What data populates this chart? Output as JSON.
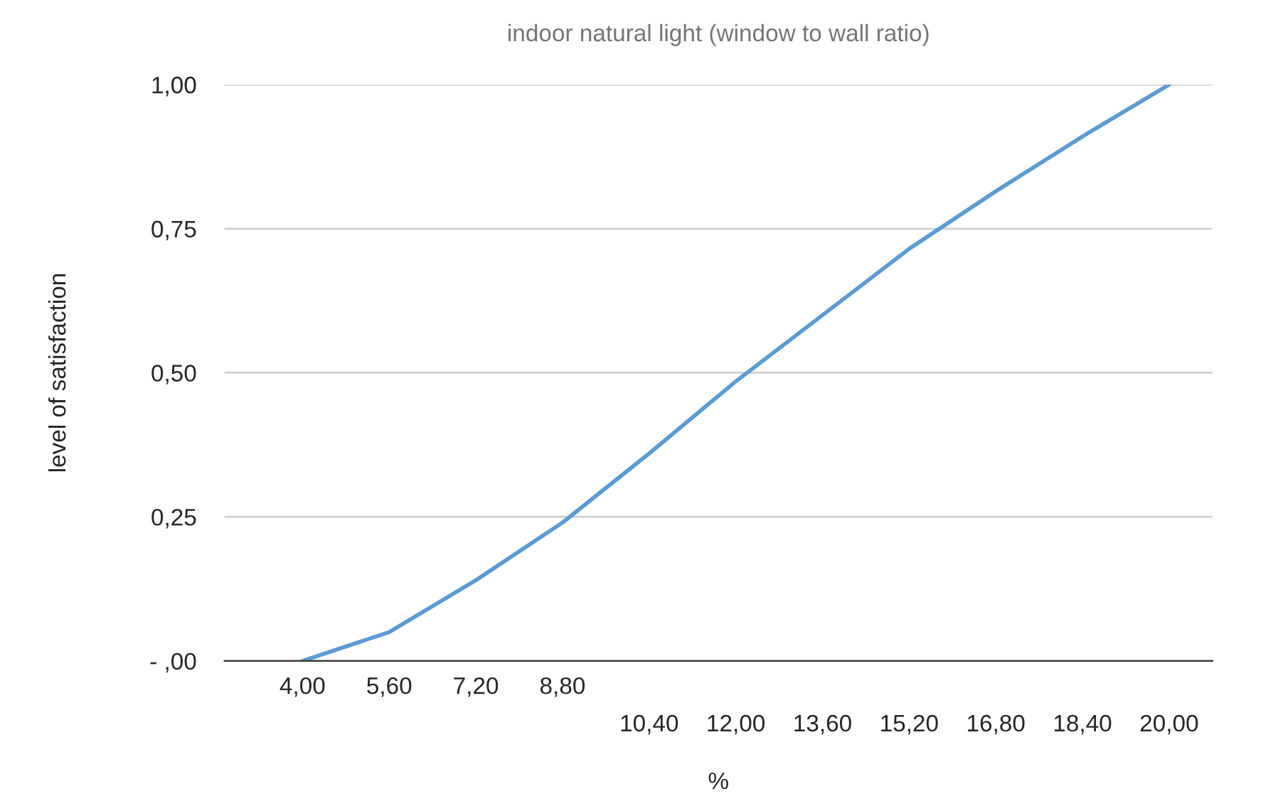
{
  "chart_data": {
    "type": "line",
    "title": "indoor natural light (window to wall ratio)",
    "xlabel": "%",
    "ylabel": "level of satisfaction",
    "categories": [
      "4,00",
      "5,60",
      "7,20",
      "8,80",
      "10,40",
      "12,00",
      "13,60",
      "15,20",
      "16,80",
      "18,40",
      "20,00"
    ],
    "series": [
      {
        "color": "#5b9bd5",
        "values": [
          0.0,
          0.05,
          0.14,
          0.24,
          0.36,
          0.485,
          0.6,
          0.715,
          0.815,
          0.91,
          1.0
        ]
      }
    ],
    "ylim": [
      0,
      1
    ],
    "yticks": [
      {
        "value": 0,
        "label": "- ,00"
      },
      {
        "value": 0.25,
        "label": "0,25"
      },
      {
        "value": 0.5,
        "label": "0,50"
      },
      {
        "value": 0.75,
        "label": "0,75"
      },
      {
        "value": 1,
        "label": "1,00"
      }
    ],
    "grid": "y",
    "marker": "none",
    "line_style": "solid"
  }
}
